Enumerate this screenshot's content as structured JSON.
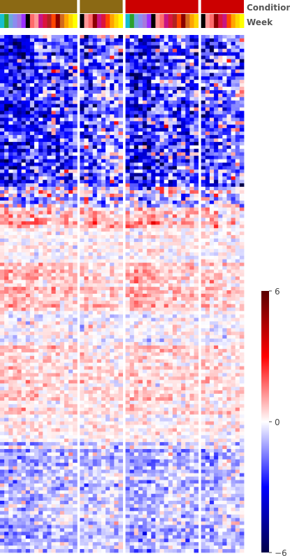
{
  "chart_data": {
    "type": "heatmap",
    "annotation_labels": {
      "condition": "Condition",
      "week": "Week"
    },
    "column_groups": [
      {
        "condition_color": "#8B6914",
        "week_colors": [
          "#17BECF",
          "#2CA02C",
          "#6FA8DC",
          "#8C8CF0",
          "#A678DE",
          "#9B30FF",
          "#000000",
          "#FF6B6B",
          "#FF9999",
          "#C71585",
          "#DC143C",
          "#B22222",
          "#FF4500",
          "#8B0000",
          "#D2691E",
          "#FFA500",
          "#FFD700",
          "#FFFF00"
        ]
      },
      {
        "condition_color": "#8B6914",
        "week_colors": [
          "#000000",
          "#FF9999",
          "#FF6B6B",
          "#8B0000",
          "#C71585",
          "#DC143C",
          "#FF4500",
          "#FFA500",
          "#FFD700",
          "#FFFF00"
        ]
      },
      {
        "condition_color": "#CC0000",
        "week_colors": [
          "#17BECF",
          "#2CA02C",
          "#6FA8DC",
          "#8C8CF0",
          "#A678DE",
          "#9B30FF",
          "#000000",
          "#FF9999",
          "#FF6B6B",
          "#C71585",
          "#DC143C",
          "#B22222",
          "#FF4500",
          "#8B0000",
          "#D2691E",
          "#FFA500",
          "#FFD700"
        ]
      },
      {
        "condition_color": "#CC0000",
        "week_colors": [
          "#000000",
          "#FF9999",
          "#FF6B6B",
          "#8B0000",
          "#DC143C",
          "#C71585",
          "#FF4500",
          "#FFA500",
          "#FFD700",
          "#FFFF00"
        ]
      }
    ],
    "colorbar": {
      "min": -6,
      "max": 6,
      "ticks": [
        "6",
        "0",
        "−6"
      ]
    },
    "value_range": [
      -6,
      6
    ],
    "row_count": 150,
    "row_bands": [
      {
        "rows": [
          0,
          44
        ],
        "mean": -2.2,
        "sd": 1.5
      },
      {
        "rows": [
          44,
          50
        ],
        "mean": -0.8,
        "sd": 1.3
      },
      {
        "rows": [
          50,
          56
        ],
        "mean": 1.0,
        "sd": 0.7
      },
      {
        "rows": [
          56,
          66
        ],
        "mean": 0.1,
        "sd": 0.4
      },
      {
        "rows": [
          66,
          80
        ],
        "mean": 0.7,
        "sd": 0.5
      },
      {
        "rows": [
          80,
          90
        ],
        "mean": -0.1,
        "sd": 0.45
      },
      {
        "rows": [
          90,
          110
        ],
        "mean": 0.45,
        "sd": 0.45
      },
      {
        "rows": [
          110,
          118
        ],
        "mean": 0.1,
        "sd": 0.4
      },
      {
        "rows": [
          118,
          150
        ],
        "mean": -0.8,
        "sd": 0.65
      }
    ]
  }
}
